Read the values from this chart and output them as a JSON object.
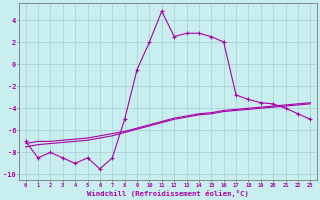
{
  "xlabel": "Windchill (Refroidissement éolien,°C)",
  "bg_color": "#c8eef0",
  "grid_color": "#b0d8da",
  "line_color": "#aa00aa",
  "x_hours": [
    0,
    1,
    2,
    3,
    4,
    5,
    6,
    7,
    8,
    9,
    10,
    11,
    12,
    13,
    14,
    15,
    16,
    17,
    18,
    19,
    20,
    21,
    22,
    23
  ],
  "windchill": [
    -7.0,
    -8.5,
    -8.0,
    -8.5,
    -9.0,
    -8.5,
    -9.5,
    -8.5,
    -5.0,
    -0.5,
    2.0,
    4.8,
    2.5,
    2.8,
    2.8,
    2.5,
    2.0,
    -2.8,
    -3.2,
    -3.5,
    -3.6,
    -4.0,
    -4.5,
    -5.0
  ],
  "smooth_line1": [
    -7.2,
    -7.0,
    -7.0,
    -6.9,
    -6.8,
    -6.7,
    -6.5,
    -6.3,
    -6.1,
    -5.8,
    -5.5,
    -5.2,
    -4.9,
    -4.7,
    -4.5,
    -4.4,
    -4.2,
    -4.1,
    -4.0,
    -3.9,
    -3.8,
    -3.7,
    -3.6,
    -3.5
  ],
  "smooth_line2": [
    -7.5,
    -7.3,
    -7.2,
    -7.1,
    -7.0,
    -6.9,
    -6.7,
    -6.5,
    -6.2,
    -5.9,
    -5.6,
    -5.3,
    -5.0,
    -4.8,
    -4.6,
    -4.5,
    -4.3,
    -4.2,
    -4.1,
    -4.0,
    -3.9,
    -3.8,
    -3.7,
    -3.6
  ],
  "xlim": [
    -0.5,
    23.5
  ],
  "ylim": [
    -10.5,
    5.5
  ],
  "yticks": [
    -10,
    -8,
    -6,
    -4,
    -2,
    0,
    2,
    4
  ],
  "xticks": [
    0,
    1,
    2,
    3,
    4,
    5,
    6,
    7,
    8,
    9,
    10,
    11,
    12,
    13,
    14,
    15,
    16,
    17,
    18,
    19,
    20,
    21,
    22,
    23
  ]
}
